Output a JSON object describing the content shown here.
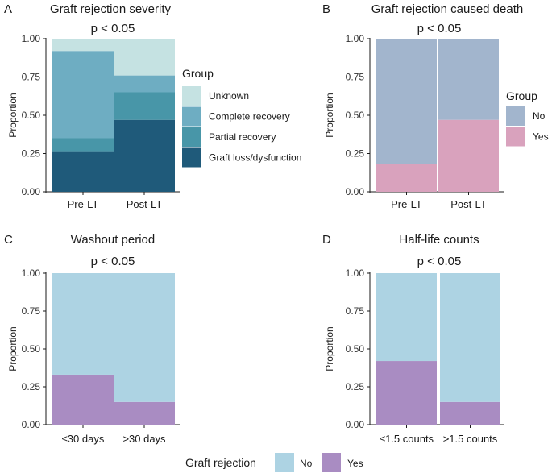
{
  "chart_data": [
    {
      "panel": "A",
      "type": "bar",
      "stacked": true,
      "title": "Graft rejection severity",
      "annotation": "p < 0.05",
      "xlabel": "",
      "ylabel": "Proportion",
      "ylim": [
        0,
        1
      ],
      "yticks": [
        "0.00",
        "0.25",
        "0.50",
        "0.75",
        "1.00"
      ],
      "categories": [
        "Pre-LT",
        "Post-LT"
      ],
      "legend": {
        "title": "Group",
        "position": "right"
      },
      "series": [
        {
          "name": "Graft loss/dysfunction",
          "color": "#1f5a7a",
          "values": [
            0.26,
            0.47
          ]
        },
        {
          "name": "Partial recovery",
          "color": "#4896a8",
          "values": [
            0.09,
            0.18
          ]
        },
        {
          "name": "Complete recovery",
          "color": "#6eadc2",
          "values": [
            0.57,
            0.11
          ]
        },
        {
          "name": "Unknown",
          "color": "#c5e2e2",
          "values": [
            0.08,
            0.24
          ]
        }
      ]
    },
    {
      "panel": "B",
      "type": "bar",
      "stacked": true,
      "title": "Graft rejection caused death",
      "annotation": "p < 0.05",
      "xlabel": "",
      "ylabel": "Proportion",
      "ylim": [
        0,
        1
      ],
      "yticks": [
        "0.00",
        "0.25",
        "0.50",
        "0.75",
        "1.00"
      ],
      "categories": [
        "Pre-LT",
        "Post-LT"
      ],
      "legend": {
        "title": "Group",
        "position": "right"
      },
      "series": [
        {
          "name": "Yes",
          "color": "#d9a2bd",
          "values": [
            0.18,
            0.47
          ]
        },
        {
          "name": "No",
          "color": "#a2b5cd",
          "values": [
            0.82,
            0.53
          ]
        }
      ]
    },
    {
      "panel": "C",
      "type": "bar",
      "stacked": true,
      "title": "Washout period",
      "annotation": "p < 0.05",
      "xlabel": "",
      "ylabel": "Proportion",
      "ylim": [
        0,
        1
      ],
      "yticks": [
        "0.00",
        "0.25",
        "0.50",
        "0.75",
        "1.00"
      ],
      "categories": [
        "≤30 days",
        ">30 days"
      ],
      "series": [
        {
          "name": "Yes",
          "color": "#a98cc2",
          "values": [
            0.33,
            0.15
          ]
        },
        {
          "name": "No",
          "color": "#add3e3",
          "values": [
            0.67,
            0.85
          ]
        }
      ]
    },
    {
      "panel": "D",
      "type": "bar",
      "stacked": true,
      "title": "Half-life counts",
      "annotation": "p < 0.05",
      "xlabel": "",
      "ylabel": "Proportion",
      "ylim": [
        0,
        1
      ],
      "yticks": [
        "0.00",
        "0.25",
        "0.50",
        "0.75",
        "1.00"
      ],
      "categories": [
        "≤1.5 counts",
        ">1.5 counts"
      ],
      "series": [
        {
          "name": "Yes",
          "color": "#a98cc2",
          "values": [
            0.42,
            0.15
          ]
        },
        {
          "name": "No",
          "color": "#add3e3",
          "values": [
            0.58,
            0.85
          ]
        }
      ]
    }
  ],
  "shared_legend": {
    "title": "Graft rejection",
    "items": [
      {
        "name": "No",
        "color": "#add3e3"
      },
      {
        "name": "Yes",
        "color": "#a98cc2"
      }
    ]
  }
}
